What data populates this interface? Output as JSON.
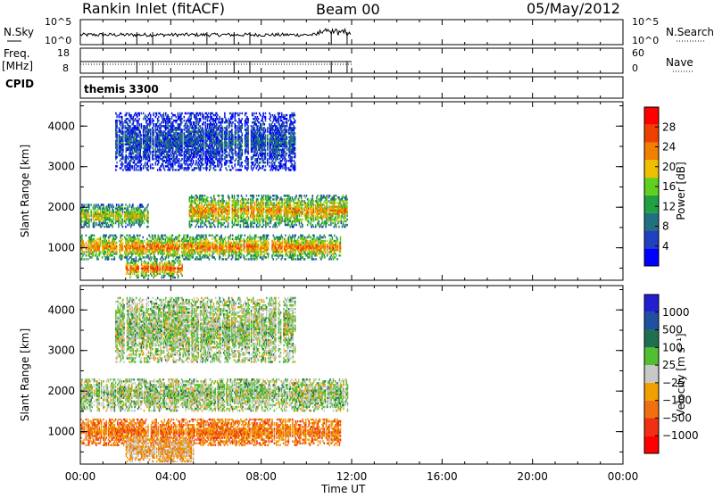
{
  "header": {
    "station": "Rankin Inlet (fitACF)",
    "beam": "Beam 00",
    "date": "05/May/2012"
  },
  "nsky_panel": {
    "left_label": "N.Sky",
    "left_ticks": [
      "10^5",
      "10^0"
    ],
    "right_ticks": [
      "10^5",
      "10^0"
    ],
    "right_label": "N.Search"
  },
  "freq_panel": {
    "left_label_top": "Freq.",
    "left_label_unit": "[MHz]",
    "left_ticks": [
      "18",
      "8"
    ],
    "right_ticks": [
      "60",
      "0"
    ],
    "right_label": "Nave",
    "cpid_label": "CPID",
    "mode": "themis 3300"
  },
  "colors": {
    "power": [
      "#0000ff",
      "#2040c0",
      "#207080",
      "#20a040",
      "#60d020",
      "#f0c000",
      "#f08000",
      "#f04000",
      "#ff0000"
    ],
    "velocity": [
      "#2020d0",
      "#2050a0",
      "#207050",
      "#50c030",
      "#c8c8c8",
      "#f0a000",
      "#f07010",
      "#f03010",
      "#ff0000"
    ]
  },
  "chart_data": [
    {
      "type": "heatmap",
      "name": "power",
      "ylabel": "Slant Range [km]",
      "yticks": [
        "1000",
        "2000",
        "3000",
        "4000"
      ],
      "ylim": [
        200,
        4600
      ],
      "xlim": [
        0,
        24
      ],
      "colorbar_label": "Power [dB]",
      "colorbar_ticks": [
        "4",
        "8",
        "12",
        "16",
        "20",
        "24",
        "28"
      ],
      "colorbar_range": [
        0,
        32
      ],
      "bands": [
        {
          "t0": 0.0,
          "t1": 3.0,
          "r0": 1500,
          "r1": 2050,
          "level": 0.55
        },
        {
          "t0": 4.8,
          "t1": 11.8,
          "r0": 1500,
          "r1": 2300,
          "level": 0.65
        },
        {
          "t0": 0.0,
          "t1": 11.5,
          "r0": 700,
          "r1": 1300,
          "level": 0.7
        },
        {
          "t0": 2.0,
          "t1": 4.5,
          "r0": 250,
          "r1": 700,
          "level": 0.75
        },
        {
          "t0": 1.5,
          "t1": 9.5,
          "r0": 2900,
          "r1": 4300,
          "level": 0.2
        }
      ]
    },
    {
      "type": "heatmap",
      "name": "velocity",
      "ylabel": "Slant Range [km]",
      "yticks": [
        "1000",
        "2000",
        "3000",
        "4000"
      ],
      "ylim": [
        200,
        4600
      ],
      "xlim": [
        0,
        24
      ],
      "colorbar_label": "Velocity [m s⁻¹]",
      "colorbar_ticks": [
        "1000",
        "500",
        "100",
        "25",
        "−25",
        "−100",
        "−500",
        "−1000"
      ],
      "bands": [
        {
          "t0": 0.0,
          "t1": 11.8,
          "r0": 1500,
          "r1": 2300,
          "level": 0.45
        },
        {
          "t0": 0.0,
          "t1": 11.5,
          "r0": 650,
          "r1": 1300,
          "level": 0.7
        },
        {
          "t0": 2.0,
          "t1": 5.0,
          "r0": 250,
          "r1": 800,
          "level": 0.6
        },
        {
          "t0": 1.5,
          "t1": 9.5,
          "r0": 2700,
          "r1": 4300,
          "level": 0.45
        }
      ]
    }
  ],
  "xaxis": {
    "ticks": [
      "00:00",
      "04:00",
      "08:00",
      "12:00",
      "16:00",
      "20:00",
      "00:00"
    ],
    "label": "Time UT"
  }
}
